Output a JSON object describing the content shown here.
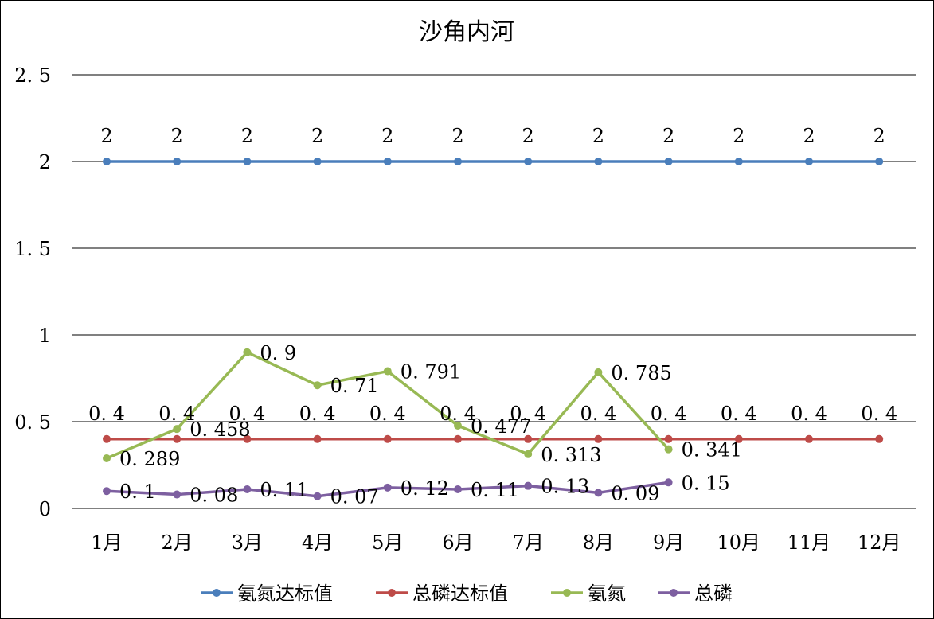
{
  "chart_data": {
    "type": "line",
    "title": "沙角内河",
    "categories": [
      "1月",
      "2月",
      "3月",
      "4月",
      "5月",
      "6月",
      "7月",
      "8月",
      "9月",
      "10月",
      "11月",
      "12月"
    ],
    "ylim": [
      0,
      2.5
    ],
    "yticks": [
      0,
      0.5,
      1,
      1.5,
      2,
      2.5
    ],
    "ytick_labels": [
      "0",
      "0. 5",
      "1",
      "1. 5",
      "2",
      "2. 5"
    ],
    "grid": true,
    "legend_position": "bottom",
    "series": [
      {
        "name": "氨氮达标值",
        "color": "#4a7ebb",
        "values": [
          2,
          2,
          2,
          2,
          2,
          2,
          2,
          2,
          2,
          2,
          2,
          2
        ],
        "labels": [
          "2",
          "2",
          "2",
          "2",
          "2",
          "2",
          "2",
          "2",
          "2",
          "2",
          "2",
          "2"
        ],
        "label_position": "above"
      },
      {
        "name": "总磷达标值",
        "color": "#be4b48",
        "values": [
          0.4,
          0.4,
          0.4,
          0.4,
          0.4,
          0.4,
          0.4,
          0.4,
          0.4,
          0.4,
          0.4,
          0.4
        ],
        "labels": [
          "0. 4",
          "0. 4",
          "0. 4",
          "0. 4",
          "0. 4",
          "0. 4",
          "0. 4",
          "0. 4",
          "0. 4",
          "0. 4",
          "0. 4",
          "0. 4"
        ],
        "label_position": "above"
      },
      {
        "name": "氨氮",
        "color": "#98b954",
        "values": [
          0.289,
          0.458,
          0.9,
          0.71,
          0.791,
          0.477,
          0.313,
          0.785,
          0.341,
          null,
          null,
          null
        ],
        "labels": [
          "0. 289",
          "0. 458",
          "0. 9",
          "0. 71",
          "0. 791",
          "0. 477",
          "0. 313",
          "0. 785",
          "0. 341",
          null,
          null,
          null
        ],
        "label_position": "right"
      },
      {
        "name": "总磷",
        "color": "#7d5fa0",
        "values": [
          0.1,
          0.08,
          0.11,
          0.07,
          0.12,
          0.11,
          0.13,
          0.09,
          0.15,
          null,
          null,
          null
        ],
        "labels": [
          "0. 1",
          "0. 08",
          "0. 11",
          "0. 07",
          "0. 12",
          "0. 11",
          "0. 13",
          "0. 09",
          "0. 15",
          null,
          null,
          null
        ],
        "label_position": "right"
      }
    ]
  }
}
